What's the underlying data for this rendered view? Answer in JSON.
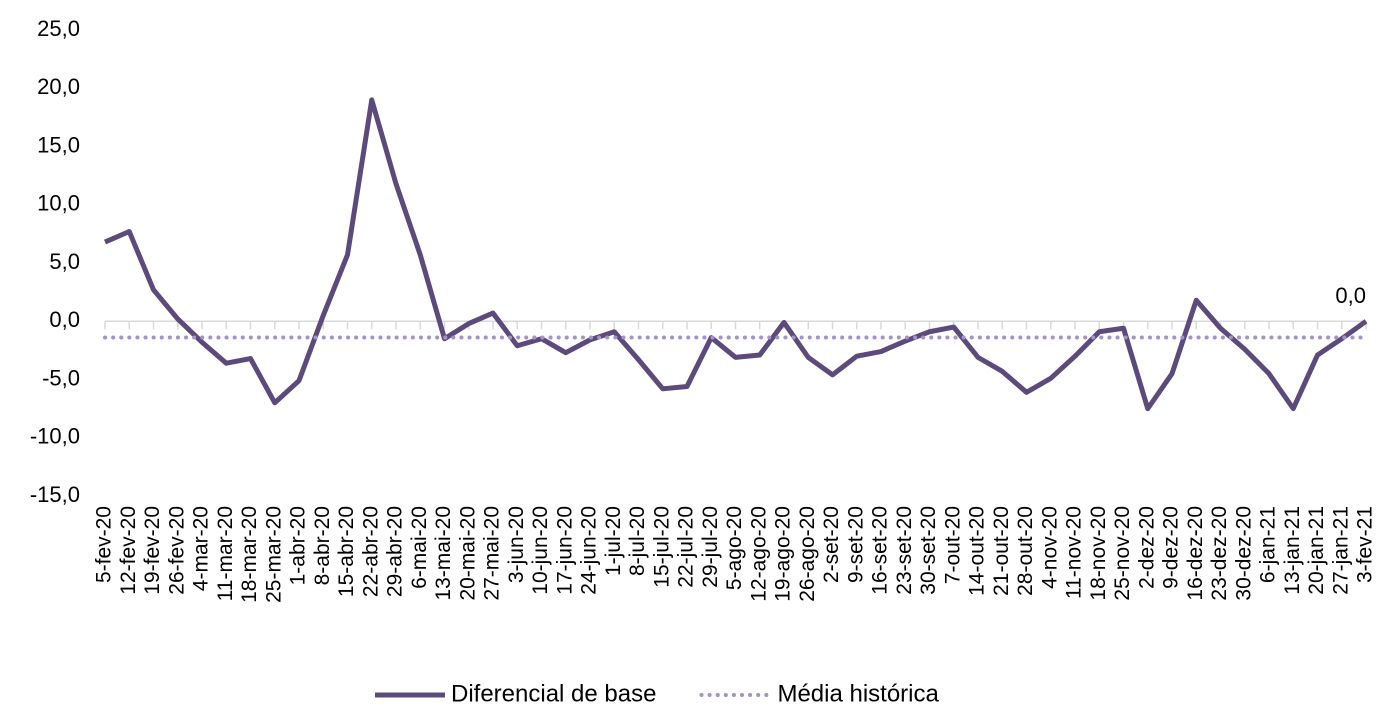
{
  "chart_data": {
    "type": "line",
    "categories": [
      "5-fev-20",
      "12-fev-20",
      "19-fev-20",
      "26-fev-20",
      "4-mar-20",
      "11-mar-20",
      "18-mar-20",
      "25-mar-20",
      "1-abr-20",
      "8-abr-20",
      "15-abr-20",
      "22-abr-20",
      "29-abr-20",
      "6-mai-20",
      "13-mai-20",
      "20-mai-20",
      "27-mai-20",
      "3-jun-20",
      "10-jun-20",
      "17-jun-20",
      "24-jun-20",
      "1-jul-20",
      "8-jul-20",
      "15-jul-20",
      "22-jul-20",
      "29-jul-20",
      "5-ago-20",
      "12-ago-20",
      "19-ago-20",
      "26-ago-20",
      "2-set-20",
      "9-set-20",
      "16-set-20",
      "23-set-20",
      "30-set-20",
      "7-out-20",
      "14-out-20",
      "21-out-20",
      "28-out-20",
      "4-nov-20",
      "11-nov-20",
      "18-nov-20",
      "25-nov-20",
      "2-dez-20",
      "9-dez-20",
      "16-dez-20",
      "23-dez-20",
      "30-dez-20",
      "6-jan-21",
      "13-jan-21",
      "20-jan-21",
      "27-jan-21",
      "3-fev-21"
    ],
    "series": [
      {
        "name": "Diferencial de base",
        "color": "#5c4a7d",
        "dash": "solid",
        "values": [
          6.8,
          7.7,
          2.7,
          0.2,
          -1.8,
          -3.6,
          -3.2,
          -7.0,
          -5.1,
          0.5,
          5.7,
          19.0,
          11.8,
          5.7,
          -1.5,
          -0.2,
          0.7,
          -2.1,
          -1.5,
          -2.7,
          -1.6,
          -0.9,
          -3.3,
          -5.8,
          -5.6,
          -1.4,
          -3.1,
          -2.9,
          -0.1,
          -3.1,
          -4.6,
          -3.0,
          -2.6,
          -1.7,
          -0.9,
          -0.5,
          -3.1,
          -4.3,
          -6.1,
          -4.9,
          -3.0,
          -0.9,
          -0.6,
          -7.5,
          -4.5,
          1.8,
          -0.6,
          -2.4,
          -4.5,
          -7.5,
          -2.9,
          -1.5,
          0.0
        ],
        "value_labels": [
          null,
          null,
          null,
          null,
          null,
          null,
          null,
          null,
          null,
          null,
          null,
          null,
          null,
          null,
          null,
          null,
          null,
          null,
          null,
          null,
          null,
          null,
          null,
          null,
          null,
          null,
          null,
          null,
          null,
          null,
          null,
          null,
          null,
          null,
          null,
          null,
          null,
          null,
          null,
          null,
          null,
          null,
          null,
          null,
          null,
          null,
          null,
          null,
          null,
          null,
          null,
          null,
          "0,0"
        ]
      },
      {
        "name": "Média histórica",
        "color": "#a493c9",
        "dash": "dotted",
        "values": [
          -1.4,
          -1.4,
          -1.4,
          -1.4,
          -1.4,
          -1.4,
          -1.4,
          -1.4,
          -1.4,
          -1.4,
          -1.4,
          -1.4,
          -1.4,
          -1.4,
          -1.4,
          -1.4,
          -1.4,
          -1.4,
          -1.4,
          -1.4,
          -1.4,
          -1.4,
          -1.4,
          -1.4,
          -1.4,
          -1.4,
          -1.4,
          -1.4,
          -1.4,
          -1.4,
          -1.4,
          -1.4,
          -1.4,
          -1.4,
          -1.4,
          -1.4,
          -1.4,
          -1.4,
          -1.4,
          -1.4,
          -1.4,
          -1.4,
          -1.4,
          -1.4,
          -1.4,
          -1.4,
          -1.4,
          -1.4,
          -1.4,
          -1.4,
          -1.4,
          -1.4,
          -1.4
        ]
      }
    ],
    "ylim": [
      -15,
      25
    ],
    "yticks": [
      {
        "value": -15,
        "label": "-15,0"
      },
      {
        "value": -10,
        "label": "-10,0"
      },
      {
        "value": -5,
        "label": "-5,0"
      },
      {
        "value": 0,
        "label": "0,0"
      },
      {
        "value": 5,
        "label": "5,0"
      },
      {
        "value": 10,
        "label": "10,0"
      },
      {
        "value": 15,
        "label": "15,0"
      },
      {
        "value": 20,
        "label": "20,0"
      },
      {
        "value": 25,
        "label": "25,0"
      }
    ],
    "grid": false,
    "legend": "bottom"
  }
}
